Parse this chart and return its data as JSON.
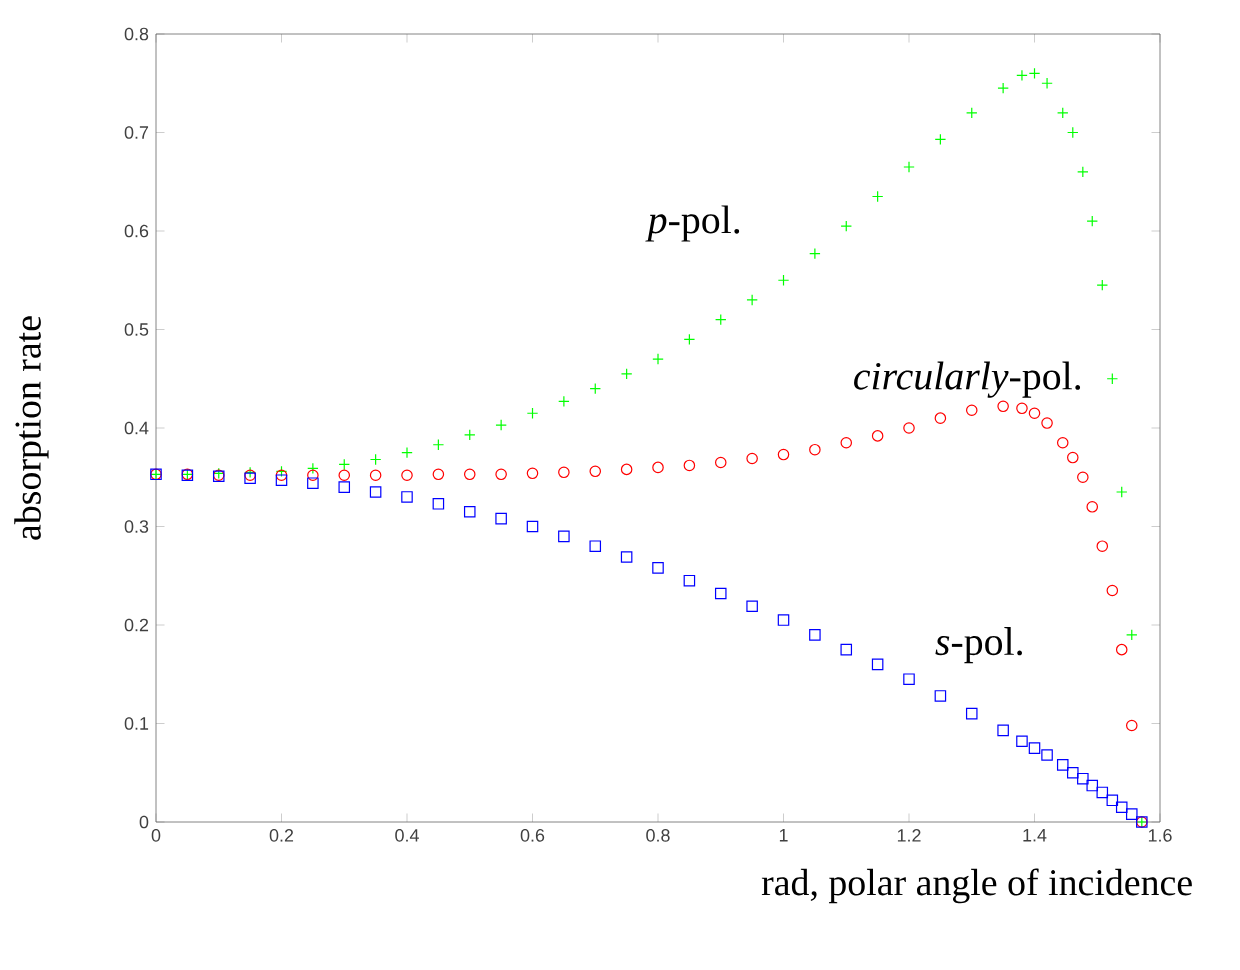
{
  "chart_data": {
    "type": "scatter",
    "xlabel": "rad, polar angle of incidence",
    "ylabel": "absorption rate",
    "x": [
      0,
      0.05,
      0.1,
      0.15,
      0.2,
      0.25,
      0.3,
      0.35,
      0.4,
      0.45,
      0.5,
      0.55,
      0.6,
      0.65,
      0.7,
      0.75,
      0.8,
      0.85,
      0.9,
      0.95,
      1.0,
      1.05,
      1.1,
      1.15,
      1.2,
      1.25,
      1.3,
      1.35,
      1.38,
      1.4,
      1.42,
      1.445,
      1.461,
      1.477,
      1.492,
      1.508,
      1.524,
      1.539,
      1.555,
      1.571
    ],
    "series": [
      {
        "name": "*p*-pol.",
        "color": "#00ff00",
        "marker": "cross",
        "values": [
          0.353,
          0.353,
          0.354,
          0.355,
          0.356,
          0.359,
          0.363,
          0.368,
          0.375,
          0.383,
          0.393,
          0.403,
          0.415,
          0.427,
          0.44,
          0.455,
          0.47,
          0.49,
          0.51,
          0.53,
          0.55,
          0.577,
          0.605,
          0.635,
          0.665,
          0.693,
          0.72,
          0.745,
          0.758,
          0.76,
          0.75,
          0.72,
          0.7,
          0.66,
          0.61,
          0.545,
          0.45,
          0.335,
          0.19,
          0
        ]
      },
      {
        "name": "*circularly*-pol.",
        "color": "#ff0000",
        "marker": "circle",
        "values": [
          0.353,
          0.353,
          0.352,
          0.352,
          0.352,
          0.352,
          0.352,
          0.352,
          0.352,
          0.353,
          0.353,
          0.353,
          0.354,
          0.355,
          0.356,
          0.358,
          0.36,
          0.362,
          0.365,
          0.369,
          0.373,
          0.378,
          0.385,
          0.392,
          0.4,
          0.41,
          0.418,
          0.422,
          0.42,
          0.415,
          0.405,
          0.385,
          0.37,
          0.35,
          0.32,
          0.28,
          0.235,
          0.175,
          0.098,
          0
        ]
      },
      {
        "name": "*s*-pol.",
        "color": "#0000ff",
        "marker": "square",
        "values": [
          0.353,
          0.352,
          0.351,
          0.349,
          0.347,
          0.344,
          0.34,
          0.335,
          0.33,
          0.323,
          0.315,
          0.308,
          0.3,
          0.29,
          0.28,
          0.269,
          0.258,
          0.245,
          0.232,
          0.219,
          0.205,
          0.19,
          0.175,
          0.16,
          0.145,
          0.128,
          0.11,
          0.093,
          0.082,
          0.075,
          0.068,
          0.058,
          0.05,
          0.044,
          0.037,
          0.03,
          0.022,
          0.015,
          0.008,
          0
        ]
      }
    ],
    "xlim": [
      0,
      1.6
    ],
    "ylim": [
      0,
      0.8
    ],
    "xticks": [
      0,
      0.2,
      0.4,
      0.6,
      0.8,
      1,
      1.2,
      1.4,
      1.6
    ],
    "yticks": [
      0,
      0.1,
      0.2,
      0.3,
      0.4,
      0.5,
      0.6,
      0.7,
      0.8
    ],
    "grid": false
  }
}
